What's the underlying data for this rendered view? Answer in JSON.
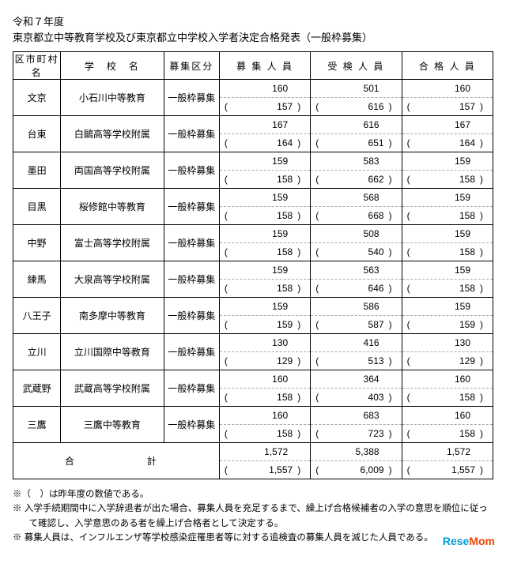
{
  "title_line1": "令和７年度",
  "title_line2": "東京都立中等教育学校及び東京都立中学校入学者決定合格発表（一般枠募集）",
  "headers": {
    "ward": "区市町村名",
    "school": "学　校　名",
    "category": "募集区分",
    "recruited": "募 集 人 員",
    "examinees": "受 検 人 員",
    "passed": "合 格 人 員"
  },
  "category_label": "一般枠募集",
  "rows": [
    {
      "ward": "文京",
      "school": "小石川中等教育",
      "rec": [
        160,
        157
      ],
      "exa": [
        501,
        616
      ],
      "pas": [
        160,
        157
      ]
    },
    {
      "ward": "台東",
      "school": "白鷗高等学校附属",
      "rec": [
        167,
        164
      ],
      "exa": [
        616,
        651
      ],
      "pas": [
        167,
        164
      ]
    },
    {
      "ward": "墨田",
      "school": "両国高等学校附属",
      "rec": [
        159,
        158
      ],
      "exa": [
        583,
        662
      ],
      "pas": [
        159,
        158
      ]
    },
    {
      "ward": "目黒",
      "school": "桜修館中等教育",
      "rec": [
        159,
        158
      ],
      "exa": [
        568,
        668
      ],
      "pas": [
        159,
        158
      ]
    },
    {
      "ward": "中野",
      "school": "富士高等学校附属",
      "rec": [
        159,
        158
      ],
      "exa": [
        508,
        540
      ],
      "pas": [
        159,
        158
      ]
    },
    {
      "ward": "練馬",
      "school": "大泉高等学校附属",
      "rec": [
        159,
        158
      ],
      "exa": [
        563,
        646
      ],
      "pas": [
        159,
        158
      ]
    },
    {
      "ward": "八王子",
      "school": "南多摩中等教育",
      "rec": [
        159,
        159
      ],
      "exa": [
        586,
        587
      ],
      "pas": [
        159,
        159
      ]
    },
    {
      "ward": "立川",
      "school": "立川国際中等教育",
      "rec": [
        130,
        129
      ],
      "exa": [
        416,
        513
      ],
      "pas": [
        130,
        129
      ]
    },
    {
      "ward": "武蔵野",
      "school": "武蔵高等学校附属",
      "rec": [
        160,
        158
      ],
      "exa": [
        364,
        403
      ],
      "pas": [
        160,
        158
      ]
    },
    {
      "ward": "三鷹",
      "school": "三鷹中等教育",
      "rec": [
        160,
        158
      ],
      "exa": [
        683,
        723
      ],
      "pas": [
        160,
        158
      ]
    }
  ],
  "total": {
    "label": "合　　　計",
    "rec": [
      "1,572",
      "1,557"
    ],
    "exa": [
      "5,388",
      "6,009"
    ],
    "pas": [
      "1,572",
      "1,557"
    ]
  },
  "notes": [
    "※（　）は昨年度の数値である。",
    "※ 入学手続期間中に入学辞退者が出た場合、募集人員を充足するまで、繰上げ合格候補者の入学の意思を順位に従って確認し、入学意思のある者を繰上げ合格者として決定する。",
    "※ 募集人員は、インフルエンザ等学校感染症罹患者等に対する追検査の募集人員を減じた人員である。"
  ],
  "logo": {
    "a": "Rese",
    "b": "Mom"
  }
}
